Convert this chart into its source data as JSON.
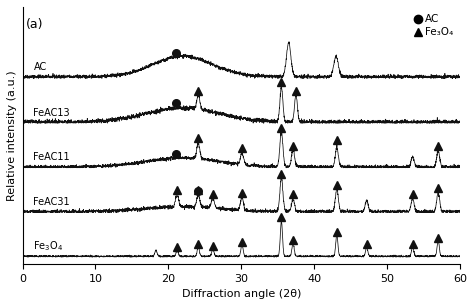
{
  "title": "(a)",
  "xlabel": "Diffraction angle (2θ)",
  "ylabel": "Relative intensity (a.u.)",
  "xlim": [
    0,
    60
  ],
  "x_ticks": [
    0,
    10,
    20,
    30,
    40,
    50,
    60
  ],
  "sample_labels": [
    "AC",
    "FeAC13",
    "FeAC11",
    "FeAC31",
    "Fe₃O₄"
  ],
  "offsets": [
    4.0,
    3.0,
    2.0,
    1.0,
    0.0
  ],
  "legend_circle_label": "AC",
  "legend_triangle_label": "Fe₃O₄",
  "background_color": "#ffffff",
  "line_color": "#111111",
  "marker_color": "#111111"
}
